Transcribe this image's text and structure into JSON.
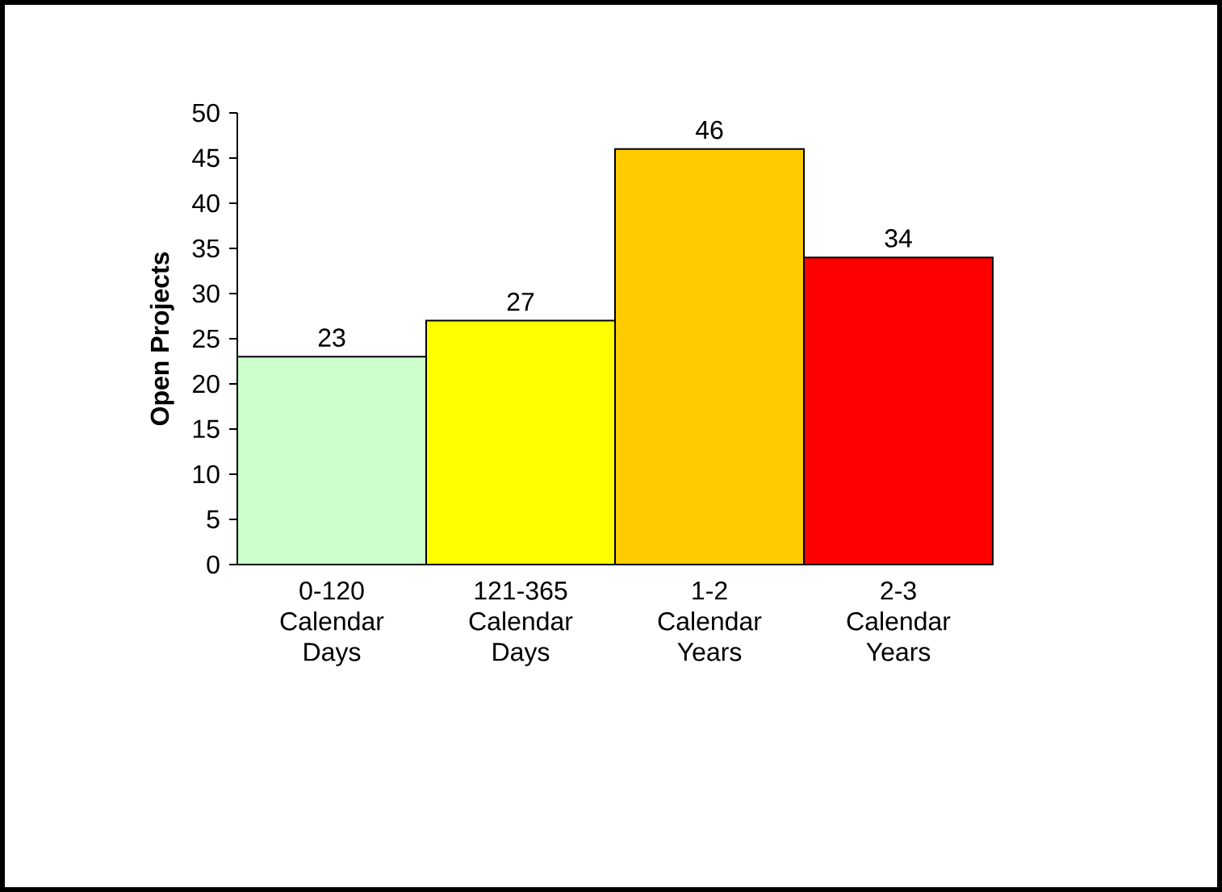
{
  "chart_data": {
    "type": "bar",
    "ylabel": "Open Projects",
    "categories": [
      "0-120 Calendar Days",
      "121-365 Calendar Days",
      "1-2 Calendar Years",
      "2-3 Calendar Years"
    ],
    "values": [
      23,
      27,
      46,
      34
    ],
    "colors": [
      "#ccffcc",
      "#ffff00",
      "#ffcc00",
      "#ff0000"
    ],
    "ylim": [
      0,
      50
    ],
    "yticks": [
      0,
      5,
      10,
      15,
      20,
      25,
      30,
      35,
      40,
      45,
      50
    ],
    "data_labels": true,
    "grid": false
  }
}
